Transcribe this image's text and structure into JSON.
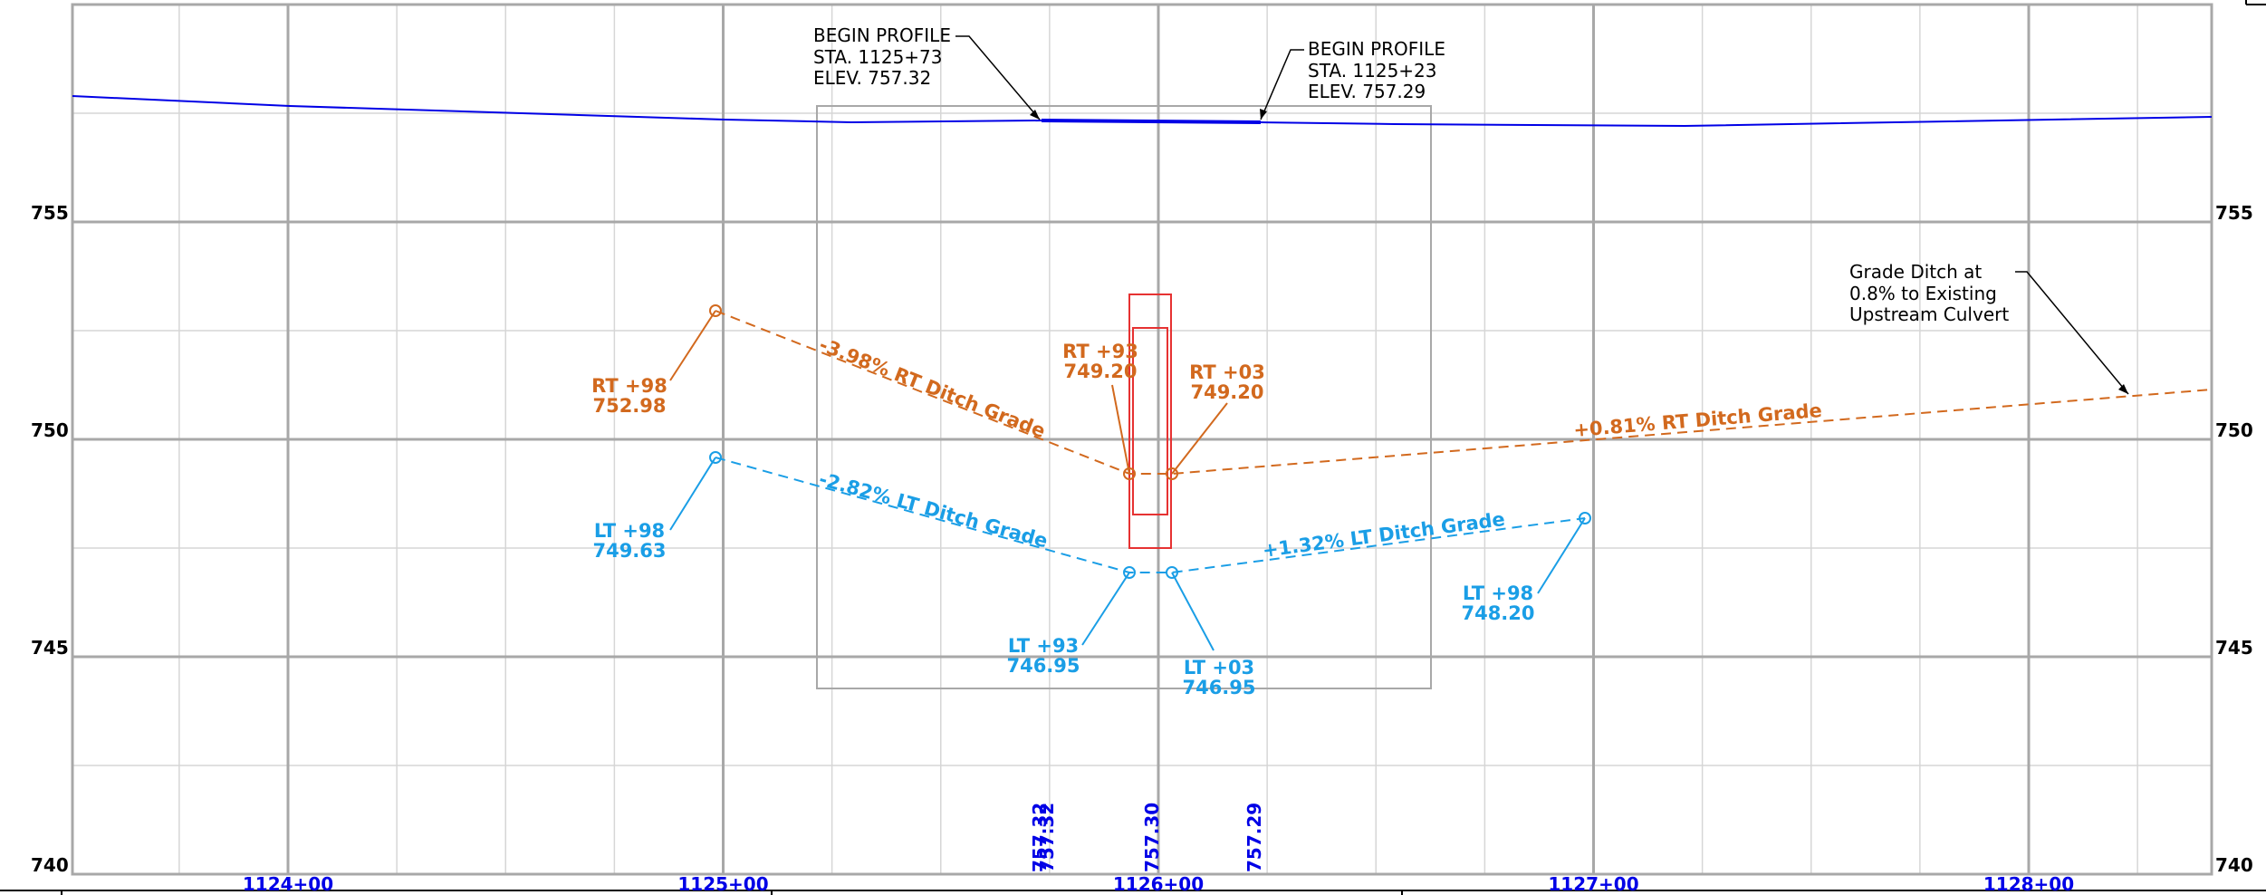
{
  "colors": {
    "existing_ground": "#0000e6",
    "rt_ditch": "#d2691e",
    "lt_ditch": "#1a9ee6",
    "culvert": "#e63232",
    "grid_major": "#a8a8a8",
    "grid_minor": "#d6d6d6",
    "station_text": "#0000e6"
  },
  "axes": {
    "elevation_ticks": [
      "755",
      "750",
      "745",
      "740"
    ],
    "station_ticks": [
      "1124+00",
      "1125+00",
      "1126+00",
      "1127+00",
      "1128+00"
    ],
    "elevation_range": [
      740,
      760
    ],
    "station_range": [
      1123.5,
      1128.42
    ]
  },
  "bottom_elevations": [
    "757.32",
    "757.30",
    "757.29"
  ],
  "callouts": {
    "begin_profile_1": [
      "BEGIN PROFILE",
      "STA. 1125+73",
      "ELEV. 757.32"
    ],
    "begin_profile_2": [
      "BEGIN PROFILE",
      "STA. 1125+23",
      "ELEV. 757.29"
    ],
    "grade_note": [
      "Grade Ditch at",
      "0.8% to Existing",
      "Upstream Culvert"
    ]
  },
  "rt_points": [
    {
      "station": "RT +98",
      "elev": "752.98"
    },
    {
      "station": "RT +93",
      "elev": "749.20"
    },
    {
      "station": "RT +03",
      "elev": "749.20"
    }
  ],
  "lt_points": [
    {
      "station": "LT +98",
      "elev": "749.63"
    },
    {
      "station": "LT +93",
      "elev": "746.95"
    },
    {
      "station": "LT +03",
      "elev": "746.95"
    },
    {
      "station": "LT +98",
      "elev": "748.20"
    }
  ],
  "grade_labels": {
    "rt_left": "-3.98% RT Ditch Grade",
    "rt_right": "+0.81% RT Ditch Grade",
    "lt_left": "-2.82% LT Ditch Grade",
    "lt_right": "+1.32% LT Ditch Grade"
  }
}
